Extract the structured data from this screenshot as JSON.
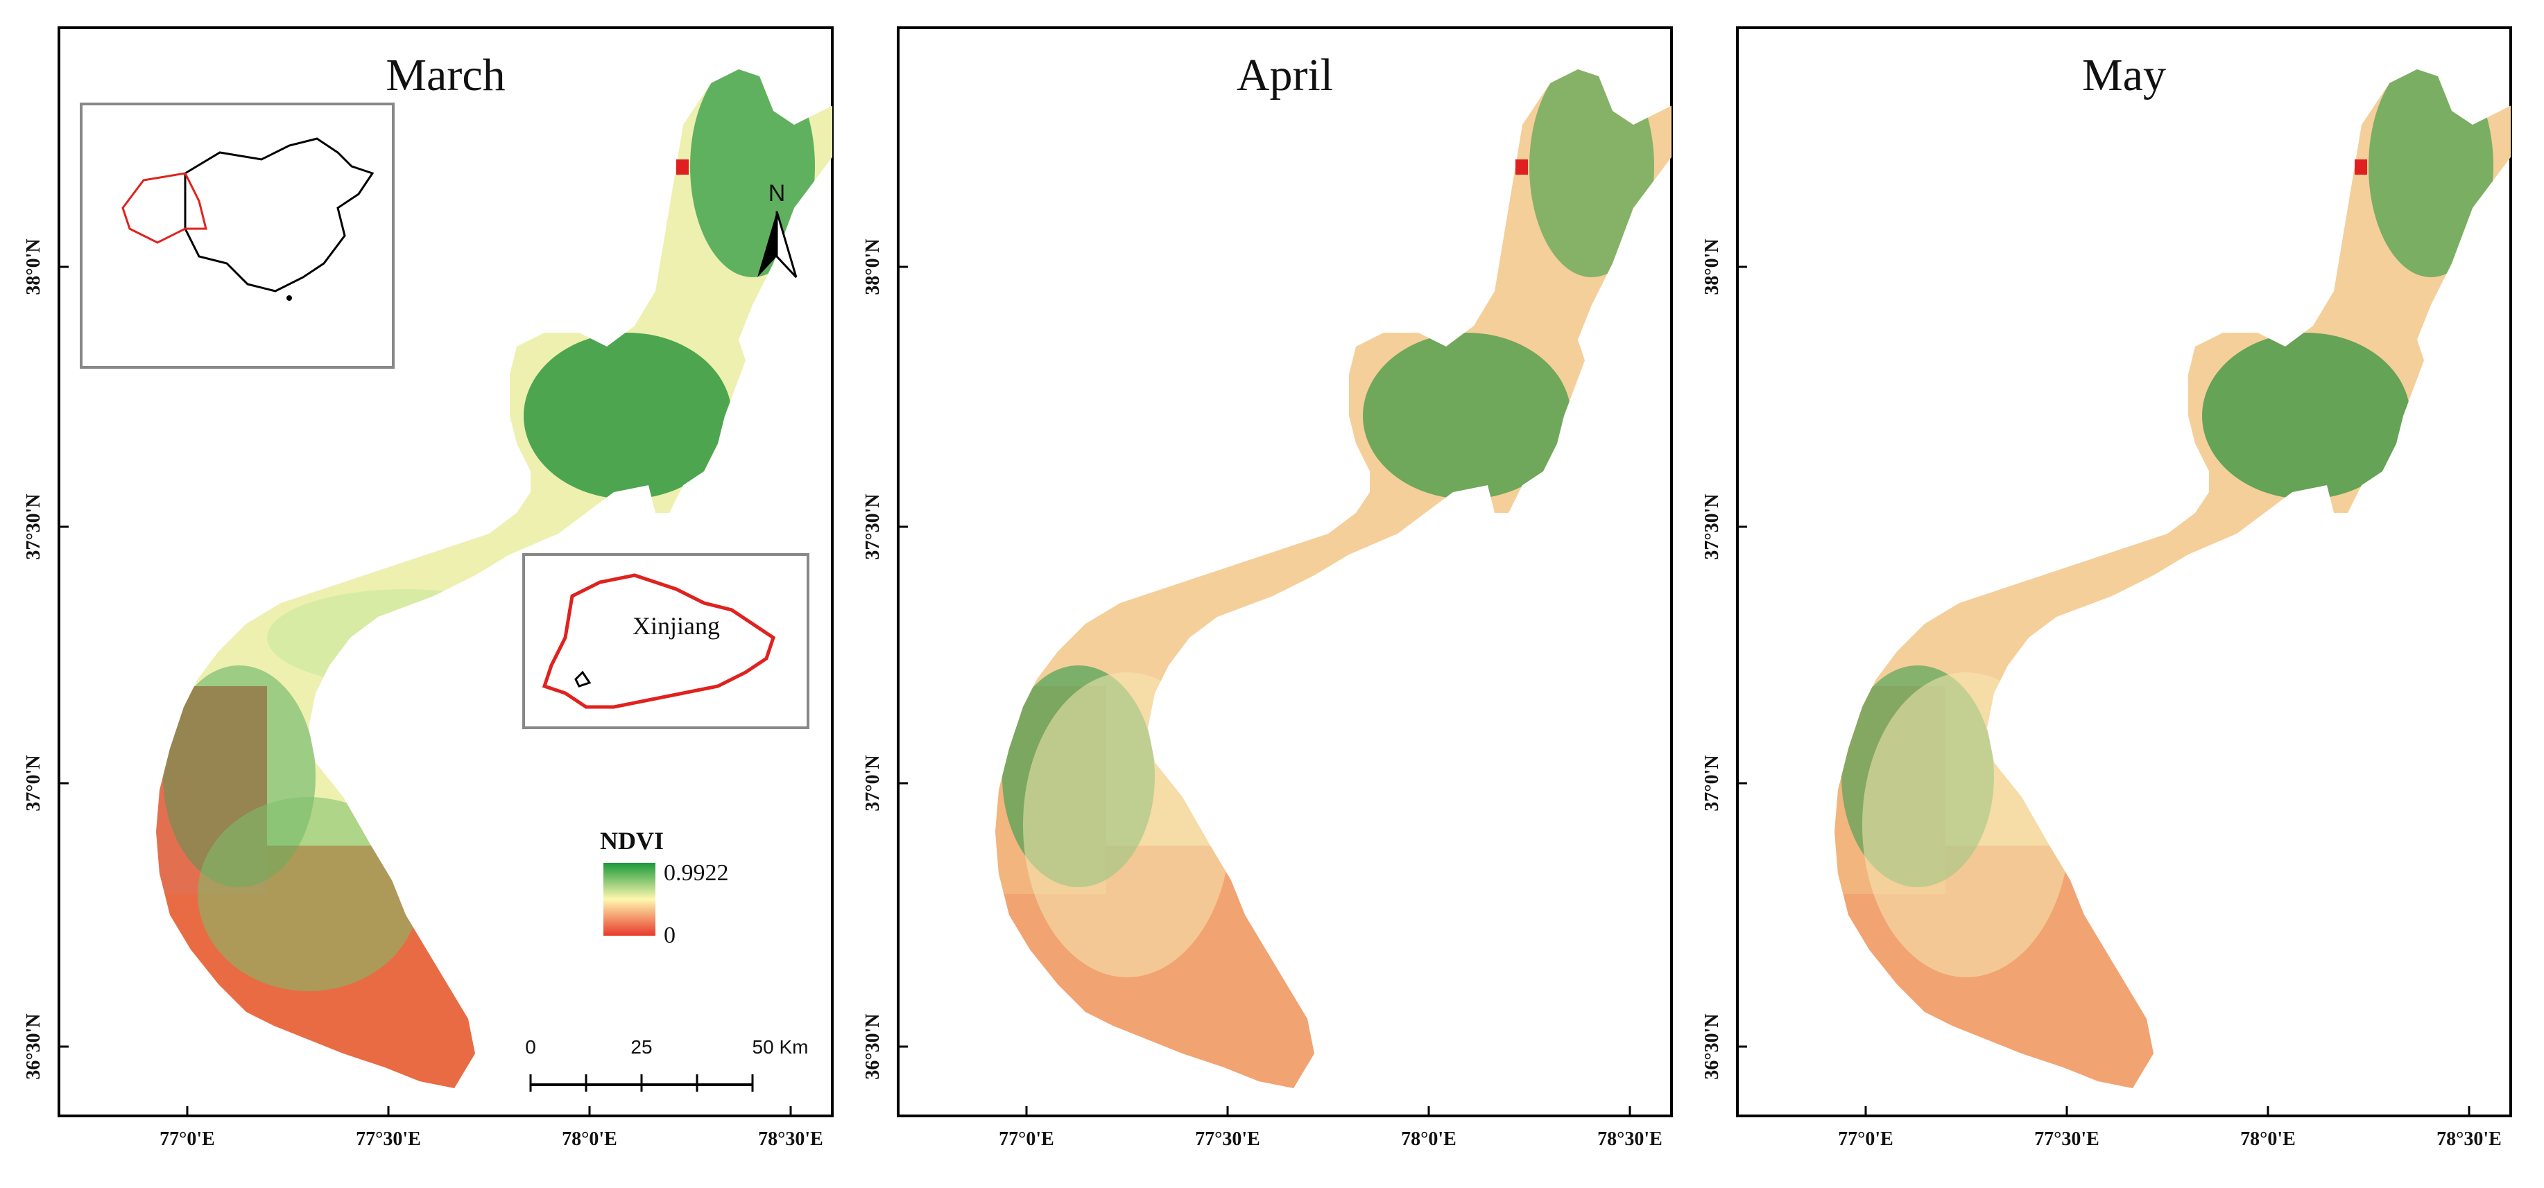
{
  "panels": [
    {
      "title": "March",
      "lat_labels": [
        "38°0'N",
        "37°30'N",
        "37°0'N",
        "36°30'N"
      ],
      "lon_labels": [
        "77°0'E",
        "77°30'E",
        "78°0'E",
        "78°30'E"
      ],
      "ndvi_relative_greenness": "high"
    },
    {
      "title": "April",
      "lat_labels": [
        "38°0'N",
        "37°30'N",
        "37°0'N",
        "36°30'N"
      ],
      "lon_labels": [
        "77°0'E",
        "77°30'E",
        "78°0'E",
        "78°30'E"
      ],
      "ndvi_relative_greenness": "low"
    },
    {
      "title": "May",
      "lat_labels": [
        "38°0'N",
        "37°30'N",
        "37°0'N",
        "36°30'N"
      ],
      "lon_labels": [
        "77°0'E",
        "77°30'E",
        "78°0'E",
        "78°30'E"
      ],
      "ndvi_relative_greenness": "medium"
    }
  ],
  "legend": {
    "title": "NDVI",
    "max_label": "0.9922",
    "min_label": "0",
    "color_high": "#1a9a3a",
    "color_mid": "#fff7b0",
    "color_low": "#e83a2a"
  },
  "scale_bar": {
    "labels": [
      "0",
      "25",
      "50 Km"
    ]
  },
  "north_arrow": {
    "label": "N"
  },
  "inset_region": {
    "label": "Xinjiang",
    "outline_color": "#e0221e"
  },
  "colors": {
    "frame": "#000000",
    "inset_border": "#888888",
    "china_outline": "#000000",
    "xinjiang_outline": "#e0221e"
  }
}
